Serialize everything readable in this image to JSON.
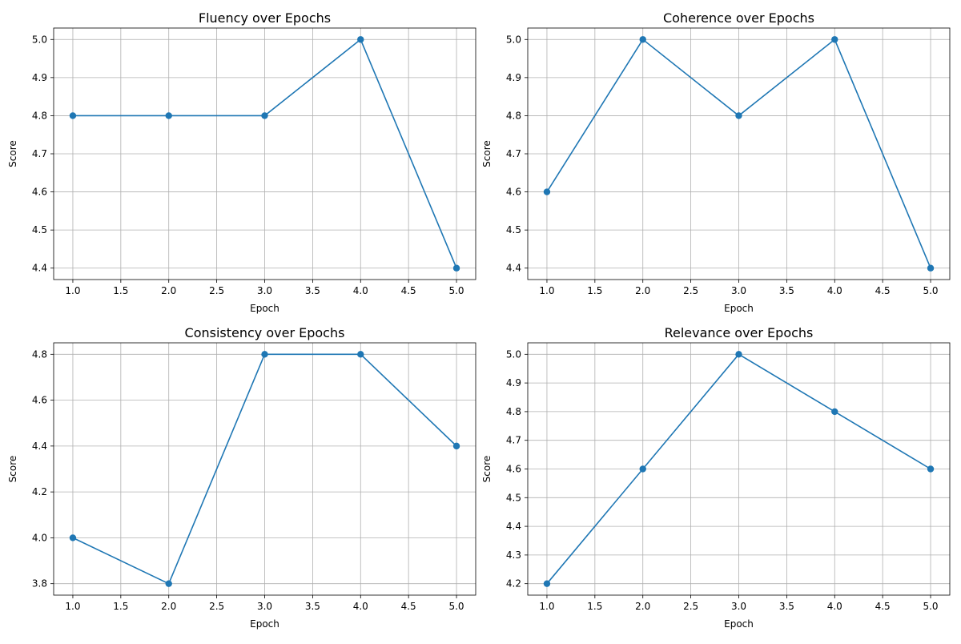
{
  "figure": {
    "background": "#ffffff",
    "line_color": "#1f77b4",
    "grid_color": "#b0b0b0"
  },
  "chart_data": [
    {
      "type": "line",
      "title": "Fluency over Epochs",
      "xlabel": "Epoch",
      "ylabel": "Score",
      "x": [
        1,
        2,
        3,
        4,
        5
      ],
      "series": [
        {
          "values": [
            4.8,
            4.8,
            4.8,
            5.0,
            4.4
          ]
        }
      ],
      "xlim": [
        0.8,
        5.2
      ],
      "ylim": [
        4.37,
        5.03
      ],
      "xticks": [
        1.0,
        1.5,
        2.0,
        2.5,
        3.0,
        3.5,
        4.0,
        4.5,
        5.0
      ],
      "xtick_labels": [
        "1.0",
        "1.5",
        "2.0",
        "2.5",
        "3.0",
        "3.5",
        "4.0",
        "4.5",
        "5.0"
      ],
      "yticks": [
        4.4,
        4.5,
        4.6,
        4.7,
        4.8,
        4.9,
        5.0
      ],
      "ytick_labels": [
        "4.4",
        "4.5",
        "4.6",
        "4.7",
        "4.8",
        "4.9",
        "5.0"
      ],
      "grid": true,
      "marker": "circle"
    },
    {
      "type": "line",
      "title": "Coherence over Epochs",
      "xlabel": "Epoch",
      "ylabel": "Score",
      "x": [
        1,
        2,
        3,
        4,
        5
      ],
      "series": [
        {
          "values": [
            4.6,
            5.0,
            4.8,
            5.0,
            4.4
          ]
        }
      ],
      "xlim": [
        0.8,
        5.2
      ],
      "ylim": [
        4.37,
        5.03
      ],
      "xticks": [
        1.0,
        1.5,
        2.0,
        2.5,
        3.0,
        3.5,
        4.0,
        4.5,
        5.0
      ],
      "xtick_labels": [
        "1.0",
        "1.5",
        "2.0",
        "2.5",
        "3.0",
        "3.5",
        "4.0",
        "4.5",
        "5.0"
      ],
      "yticks": [
        4.4,
        4.5,
        4.6,
        4.7,
        4.8,
        4.9,
        5.0
      ],
      "ytick_labels": [
        "4.4",
        "4.5",
        "4.6",
        "4.7",
        "4.8",
        "4.9",
        "5.0"
      ],
      "grid": true,
      "marker": "circle"
    },
    {
      "type": "line",
      "title": "Consistency over Epochs",
      "xlabel": "Epoch",
      "ylabel": "Score",
      "x": [
        1,
        2,
        3,
        4,
        5
      ],
      "series": [
        {
          "values": [
            4.0,
            3.8,
            4.8,
            4.8,
            4.4
          ]
        }
      ],
      "xlim": [
        0.8,
        5.2
      ],
      "ylim": [
        3.75,
        4.85
      ],
      "xticks": [
        1.0,
        1.5,
        2.0,
        2.5,
        3.0,
        3.5,
        4.0,
        4.5,
        5.0
      ],
      "xtick_labels": [
        "1.0",
        "1.5",
        "2.0",
        "2.5",
        "3.0",
        "3.5",
        "4.0",
        "4.5",
        "5.0"
      ],
      "yticks": [
        3.8,
        4.0,
        4.2,
        4.4,
        4.6,
        4.8
      ],
      "ytick_labels": [
        "3.8",
        "4.0",
        "4.2",
        "4.4",
        "4.6",
        "4.8"
      ],
      "grid": true,
      "marker": "circle"
    },
    {
      "type": "line",
      "title": "Relevance over Epochs",
      "xlabel": "Epoch",
      "ylabel": "Score",
      "x": [
        1,
        2,
        3,
        4,
        5
      ],
      "series": [
        {
          "values": [
            4.2,
            4.6,
            5.0,
            4.8,
            4.6
          ]
        }
      ],
      "xlim": [
        0.8,
        5.2
      ],
      "ylim": [
        4.16,
        5.04
      ],
      "xticks": [
        1.0,
        1.5,
        2.0,
        2.5,
        3.0,
        3.5,
        4.0,
        4.5,
        5.0
      ],
      "xtick_labels": [
        "1.0",
        "1.5",
        "2.0",
        "2.5",
        "3.0",
        "3.5",
        "4.0",
        "4.5",
        "5.0"
      ],
      "yticks": [
        4.2,
        4.3,
        4.4,
        4.5,
        4.6,
        4.7,
        4.8,
        4.9,
        5.0
      ],
      "ytick_labels": [
        "4.2",
        "4.3",
        "4.4",
        "4.5",
        "4.6",
        "4.7",
        "4.8",
        "4.9",
        "5.0"
      ],
      "grid": true,
      "marker": "circle"
    }
  ]
}
